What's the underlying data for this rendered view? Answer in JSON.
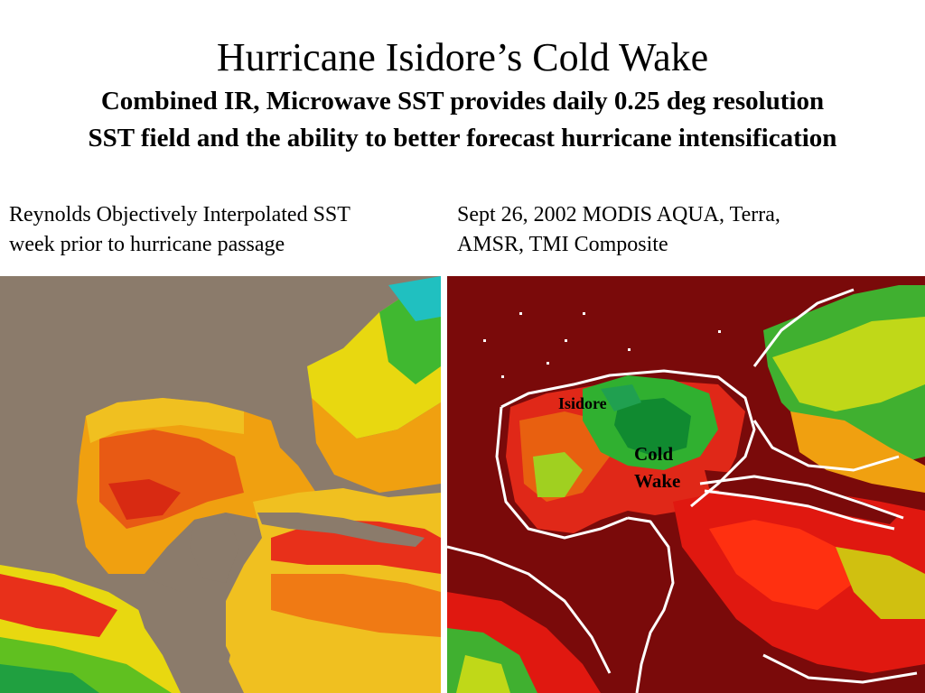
{
  "title": "Hurricane Isidore’s  Cold Wake",
  "subtitle_line1": "Combined IR, Microwave SST provides daily 0.25 deg resolution",
  "subtitle_line2": "SST field and the ability to better forecast hurricane intensification",
  "left_panel": {
    "caption_line1": "Reynolds Objectively Interpolated SST",
    "caption_line2": "week prior to hurricane passage"
  },
  "right_panel": {
    "caption_line1": "Sept 26, 2002 MODIS AQUA, Terra,",
    "caption_line2": "AMSR, TMI Composite",
    "label_storm": "Isidore",
    "label_wake_line1": "Cold",
    "label_wake_line2": "Wake"
  },
  "colors": {
    "land_left": "#8b7b6b",
    "land_right": "#7a0a0a",
    "warm": "#e8281a",
    "hot": "#d81810",
    "mid": "#f0a010",
    "yellow": "#e8e010",
    "cool": "#50c020",
    "cold": "#10a040",
    "coast": "#ffffff"
  }
}
